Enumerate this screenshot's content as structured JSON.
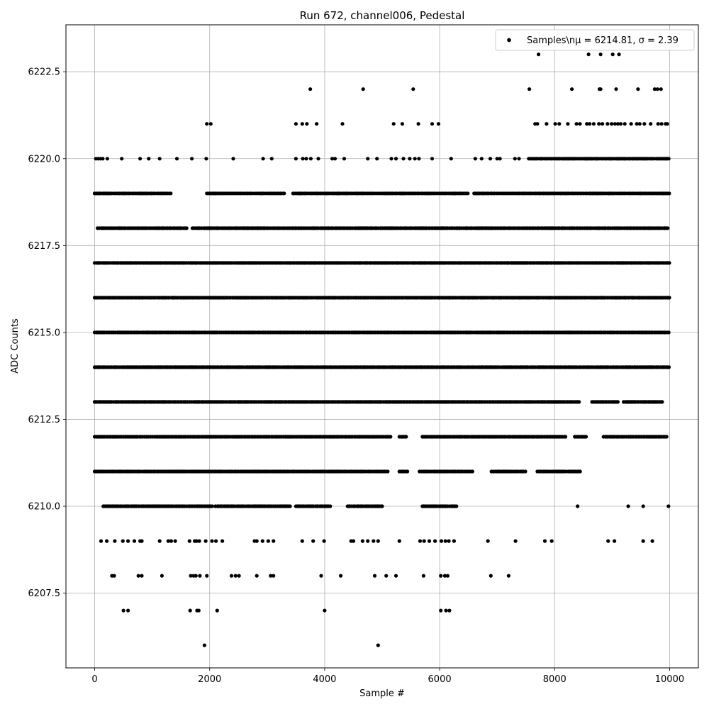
{
  "chart_data": {
    "type": "scatter",
    "title": "Run 672, channel006, Pedestal",
    "xlabel": "Sample #",
    "ylabel": "ADC Counts",
    "xlim": [
      -500,
      10500
    ],
    "ylim": [
      6205.35,
      6223.85
    ],
    "x_ticks": [
      0,
      2000,
      4000,
      6000,
      8000,
      10000
    ],
    "y_ticks": [
      6207.5,
      6210.0,
      6212.5,
      6215.0,
      6217.5,
      6220.0,
      6222.5
    ],
    "x_tick_labels": [
      "0",
      "2000",
      "4000",
      "6000",
      "8000",
      "10000"
    ],
    "y_tick_labels": [
      "6207.5",
      "6210.0",
      "6212.5",
      "6215.0",
      "6217.5",
      "6220.0",
      "6222.5"
    ],
    "grid": true,
    "legend": {
      "placement": "top-right",
      "label": "Samples\\nμ = 6214.81, σ = 2.39"
    },
    "marker_color": "#000000",
    "series": [
      {
        "name": "Samples\\nμ = 6214.81, σ = 2.39",
        "bands": [
          {
            "y": 6213,
            "x_ranges": [
              [
                0,
                8450
              ],
              [
                8650,
                9100
              ],
              [
                9200,
                9900
              ]
            ]
          },
          {
            "y": 6214,
            "x_ranges": [
              [
                0,
                10000
              ]
            ]
          },
          {
            "y": 6215,
            "x_ranges": [
              [
                0,
                10000
              ]
            ]
          },
          {
            "y": 6216,
            "x_ranges": [
              [
                0,
                10000
              ]
            ]
          },
          {
            "y": 6217,
            "x_ranges": [
              [
                0,
                10000
              ]
            ]
          },
          {
            "y": 6212,
            "x_ranges": [
              [
                0,
                5150
              ],
              [
                5300,
                5450
              ],
              [
                5700,
                8200
              ],
              [
                8350,
                8550
              ],
              [
                8850,
                9950
              ]
            ]
          },
          {
            "y": 6218,
            "x_ranges": [
              [
                50,
                1600
              ],
              [
                1700,
                10000
              ]
            ]
          },
          {
            "y": 6211,
            "x_ranges": [
              [
                0,
                5100
              ],
              [
                5300,
                5450
              ],
              [
                5650,
                6600
              ],
              [
                6900,
                7500
              ],
              [
                7700,
                8450
              ]
            ]
          },
          {
            "y": 6219,
            "x_ranges": [
              [
                0,
                1350
              ],
              [
                1950,
                3300
              ],
              [
                3450,
                6500
              ],
              [
                6600,
                10000
              ]
            ]
          },
          {
            "y": 6210,
            "x_ranges": [
              [
                150,
                2050
              ],
              [
                2100,
                3400
              ],
              [
                3500,
                4100
              ],
              [
                4400,
                5000
              ],
              [
                5700,
                6300
              ]
            ]
          },
          {
            "y": 6220,
            "x_ranges": [
              [
                7550,
                10000
              ]
            ]
          }
        ],
        "points": [
          {
            "x": 0,
            "y": 6219
          },
          {
            "x": 40,
            "y": 6219
          },
          {
            "x": 80,
            "y": 6219
          },
          {
            "x": 20,
            "y": 6220
          },
          {
            "x": 60,
            "y": 6220
          },
          {
            "x": 100,
            "y": 6220
          },
          {
            "x": 140,
            "y": 6220
          },
          {
            "x": 220,
            "y": 6220
          },
          {
            "x": 470,
            "y": 6220
          },
          {
            "x": 790,
            "y": 6220
          },
          {
            "x": 940,
            "y": 6220
          },
          {
            "x": 1130,
            "y": 6220
          },
          {
            "x": 1430,
            "y": 6220
          },
          {
            "x": 1690,
            "y": 6220
          },
          {
            "x": 1940,
            "y": 6220
          },
          {
            "x": 2410,
            "y": 6220
          },
          {
            "x": 2930,
            "y": 6220
          },
          {
            "x": 3080,
            "y": 6220
          },
          {
            "x": 3500,
            "y": 6220
          },
          {
            "x": 3620,
            "y": 6220
          },
          {
            "x": 3680,
            "y": 6220
          },
          {
            "x": 3760,
            "y": 6220
          },
          {
            "x": 3890,
            "y": 6220
          },
          {
            "x": 4130,
            "y": 6220
          },
          {
            "x": 4180,
            "y": 6220
          },
          {
            "x": 4340,
            "y": 6220
          },
          {
            "x": 4750,
            "y": 6220
          },
          {
            "x": 4910,
            "y": 6220
          },
          {
            "x": 5160,
            "y": 6220
          },
          {
            "x": 5240,
            "y": 6220
          },
          {
            "x": 5370,
            "y": 6220
          },
          {
            "x": 5480,
            "y": 6220
          },
          {
            "x": 5570,
            "y": 6220
          },
          {
            "x": 5640,
            "y": 6220
          },
          {
            "x": 5870,
            "y": 6220
          },
          {
            "x": 6200,
            "y": 6220
          },
          {
            "x": 6620,
            "y": 6220
          },
          {
            "x": 6730,
            "y": 6220
          },
          {
            "x": 6880,
            "y": 6220
          },
          {
            "x": 7000,
            "y": 6220
          },
          {
            "x": 7050,
            "y": 6220
          },
          {
            "x": 7310,
            "y": 6220
          },
          {
            "x": 7380,
            "y": 6220
          },
          {
            "x": 1950,
            "y": 6221
          },
          {
            "x": 2020,
            "y": 6221
          },
          {
            "x": 3500,
            "y": 6221
          },
          {
            "x": 3610,
            "y": 6221
          },
          {
            "x": 3690,
            "y": 6221
          },
          {
            "x": 3860,
            "y": 6221
          },
          {
            "x": 4310,
            "y": 6221
          },
          {
            "x": 5200,
            "y": 6221
          },
          {
            "x": 5350,
            "y": 6221
          },
          {
            "x": 5630,
            "y": 6221
          },
          {
            "x": 5870,
            "y": 6221
          },
          {
            "x": 5980,
            "y": 6221
          },
          {
            "x": 7660,
            "y": 6221
          },
          {
            "x": 7700,
            "y": 6221
          },
          {
            "x": 7860,
            "y": 6221
          },
          {
            "x": 8010,
            "y": 6221
          },
          {
            "x": 8080,
            "y": 6221
          },
          {
            "x": 8230,
            "y": 6221
          },
          {
            "x": 8380,
            "y": 6221
          },
          {
            "x": 8440,
            "y": 6221
          },
          {
            "x": 8560,
            "y": 6221
          },
          {
            "x": 8610,
            "y": 6221
          },
          {
            "x": 8680,
            "y": 6221
          },
          {
            "x": 8770,
            "y": 6221
          },
          {
            "x": 8830,
            "y": 6221
          },
          {
            "x": 8920,
            "y": 6221
          },
          {
            "x": 8990,
            "y": 6221
          },
          {
            "x": 9050,
            "y": 6221
          },
          {
            "x": 9100,
            "y": 6221
          },
          {
            "x": 9150,
            "y": 6221
          },
          {
            "x": 9220,
            "y": 6221
          },
          {
            "x": 9330,
            "y": 6221
          },
          {
            "x": 9430,
            "y": 6221
          },
          {
            "x": 9480,
            "y": 6221
          },
          {
            "x": 9560,
            "y": 6221
          },
          {
            "x": 9670,
            "y": 6221
          },
          {
            "x": 9800,
            "y": 6221
          },
          {
            "x": 9860,
            "y": 6221
          },
          {
            "x": 9930,
            "y": 6221
          },
          {
            "x": 9960,
            "y": 6221
          },
          {
            "x": 3750,
            "y": 6222
          },
          {
            "x": 4670,
            "y": 6222
          },
          {
            "x": 5540,
            "y": 6222
          },
          {
            "x": 7560,
            "y": 6222
          },
          {
            "x": 8300,
            "y": 6222
          },
          {
            "x": 8780,
            "y": 6222
          },
          {
            "x": 8800,
            "y": 6222
          },
          {
            "x": 9070,
            "y": 6222
          },
          {
            "x": 9450,
            "y": 6222
          },
          {
            "x": 9740,
            "y": 6222
          },
          {
            "x": 9790,
            "y": 6222
          },
          {
            "x": 9850,
            "y": 6222
          },
          {
            "x": 7720,
            "y": 6223
          },
          {
            "x": 8590,
            "y": 6223
          },
          {
            "x": 8800,
            "y": 6223
          },
          {
            "x": 9010,
            "y": 6223
          },
          {
            "x": 9120,
            "y": 6223
          },
          {
            "x": 110,
            "y": 6209
          },
          {
            "x": 210,
            "y": 6209
          },
          {
            "x": 350,
            "y": 6209
          },
          {
            "x": 490,
            "y": 6209
          },
          {
            "x": 580,
            "y": 6209
          },
          {
            "x": 690,
            "y": 6209
          },
          {
            "x": 790,
            "y": 6209
          },
          {
            "x": 820,
            "y": 6209
          },
          {
            "x": 1130,
            "y": 6209
          },
          {
            "x": 1280,
            "y": 6209
          },
          {
            "x": 1330,
            "y": 6209
          },
          {
            "x": 1400,
            "y": 6209
          },
          {
            "x": 1650,
            "y": 6209
          },
          {
            "x": 1740,
            "y": 6209
          },
          {
            "x": 1770,
            "y": 6209
          },
          {
            "x": 1820,
            "y": 6209
          },
          {
            "x": 1930,
            "y": 6209
          },
          {
            "x": 2040,
            "y": 6209
          },
          {
            "x": 2110,
            "y": 6209
          },
          {
            "x": 2220,
            "y": 6209
          },
          {
            "x": 2780,
            "y": 6209
          },
          {
            "x": 2820,
            "y": 6209
          },
          {
            "x": 2920,
            "y": 6209
          },
          {
            "x": 3020,
            "y": 6209
          },
          {
            "x": 3110,
            "y": 6209
          },
          {
            "x": 3610,
            "y": 6209
          },
          {
            "x": 3800,
            "y": 6209
          },
          {
            "x": 3990,
            "y": 6209
          },
          {
            "x": 4460,
            "y": 6209
          },
          {
            "x": 4500,
            "y": 6209
          },
          {
            "x": 4660,
            "y": 6209
          },
          {
            "x": 4750,
            "y": 6209
          },
          {
            "x": 4850,
            "y": 6209
          },
          {
            "x": 4930,
            "y": 6209
          },
          {
            "x": 5300,
            "y": 6209
          },
          {
            "x": 5660,
            "y": 6209
          },
          {
            "x": 5730,
            "y": 6209
          },
          {
            "x": 5820,
            "y": 6209
          },
          {
            "x": 5920,
            "y": 6209
          },
          {
            "x": 6030,
            "y": 6209
          },
          {
            "x": 6100,
            "y": 6209
          },
          {
            "x": 6160,
            "y": 6209
          },
          {
            "x": 6250,
            "y": 6209
          },
          {
            "x": 6840,
            "y": 6209
          },
          {
            "x": 7320,
            "y": 6209
          },
          {
            "x": 7830,
            "y": 6209
          },
          {
            "x": 7950,
            "y": 6209
          },
          {
            "x": 8930,
            "y": 6209
          },
          {
            "x": 9040,
            "y": 6209
          },
          {
            "x": 9540,
            "y": 6209
          },
          {
            "x": 9700,
            "y": 6209
          },
          {
            "x": 8400,
            "y": 6210
          },
          {
            "x": 9280,
            "y": 6210
          },
          {
            "x": 9540,
            "y": 6210
          },
          {
            "x": 9980,
            "y": 6210
          },
          {
            "x": 300,
            "y": 6208
          },
          {
            "x": 340,
            "y": 6208
          },
          {
            "x": 760,
            "y": 6208
          },
          {
            "x": 820,
            "y": 6208
          },
          {
            "x": 1170,
            "y": 6208
          },
          {
            "x": 1670,
            "y": 6208
          },
          {
            "x": 1720,
            "y": 6208
          },
          {
            "x": 1760,
            "y": 6208
          },
          {
            "x": 1830,
            "y": 6208
          },
          {
            "x": 1950,
            "y": 6208
          },
          {
            "x": 2380,
            "y": 6208
          },
          {
            "x": 2450,
            "y": 6208
          },
          {
            "x": 2510,
            "y": 6208
          },
          {
            "x": 2820,
            "y": 6208
          },
          {
            "x": 3060,
            "y": 6208
          },
          {
            "x": 3110,
            "y": 6208
          },
          {
            "x": 3940,
            "y": 6208
          },
          {
            "x": 4280,
            "y": 6208
          },
          {
            "x": 4870,
            "y": 6208
          },
          {
            "x": 5070,
            "y": 6208
          },
          {
            "x": 5240,
            "y": 6208
          },
          {
            "x": 5720,
            "y": 6208
          },
          {
            "x": 6020,
            "y": 6208
          },
          {
            "x": 6090,
            "y": 6208
          },
          {
            "x": 6140,
            "y": 6208
          },
          {
            "x": 6890,
            "y": 6208
          },
          {
            "x": 7200,
            "y": 6208
          },
          {
            "x": 500,
            "y": 6207
          },
          {
            "x": 580,
            "y": 6207
          },
          {
            "x": 1660,
            "y": 6207
          },
          {
            "x": 1780,
            "y": 6207
          },
          {
            "x": 1810,
            "y": 6207
          },
          {
            "x": 2130,
            "y": 6207
          },
          {
            "x": 4000,
            "y": 6207
          },
          {
            "x": 6020,
            "y": 6207
          },
          {
            "x": 6110,
            "y": 6207
          },
          {
            "x": 6170,
            "y": 6207
          },
          {
            "x": 1910,
            "y": 6206
          },
          {
            "x": 4930,
            "y": 6206
          }
        ]
      }
    ]
  }
}
